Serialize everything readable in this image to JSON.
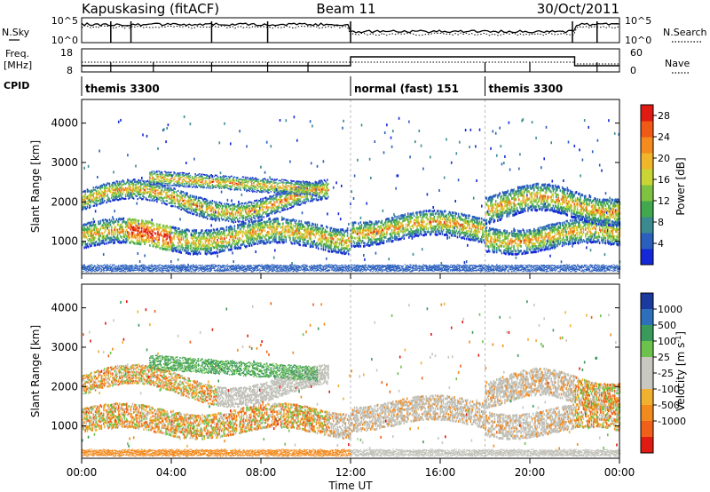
{
  "header": {
    "station": "Kapuskasing (fitACF)",
    "beam": "Beam 11",
    "date": "30/Oct/2011"
  },
  "noise_panel": {
    "left_label": "N.Sky",
    "right_label": "N.Search",
    "left_ticks": [
      "10^5",
      "10^0"
    ],
    "right_ticks": [
      "10^5",
      "10^0"
    ]
  },
  "freq_panel": {
    "left_label_line1": "Freq.",
    "left_label_line2": "[MHz]",
    "right_label": "Nave",
    "left_ticks": [
      "18",
      "8"
    ],
    "right_ticks": [
      "60",
      "0"
    ]
  },
  "cpid": {
    "label": "CPID",
    "segments": [
      {
        "start_hour": 0,
        "end_hour": 12,
        "name": "themis 3300"
      },
      {
        "start_hour": 12,
        "end_hour": 18,
        "name": "normal (fast) 151"
      },
      {
        "start_hour": 18,
        "end_hour": 24,
        "name": "themis 3300"
      }
    ]
  },
  "time_axis": {
    "label": "Time UT",
    "ticks": [
      "00:00",
      "04:00",
      "08:00",
      "12:00",
      "16:00",
      "20:00",
      "00:00"
    ]
  },
  "chart_data": [
    {
      "type": "heatmap",
      "title": "",
      "xlabel": "Time UT",
      "ylabel": "Slant Range [km]",
      "xlim_hours": [
        0,
        24
      ],
      "ylim": [
        180,
        4600
      ],
      "yticks": [
        "1000",
        "2000",
        "3000",
        "4000"
      ],
      "colorbar": {
        "label": "Power [dB]",
        "ticks": [
          "4",
          "8",
          "12",
          "16",
          "20",
          "24",
          "28"
        ],
        "range": [
          0,
          30
        ],
        "colors": [
          "#1428d8",
          "#2a5fbd",
          "#3a8a8f",
          "#41a84e",
          "#7fc241",
          "#c9d435",
          "#f0b52b",
          "#f58a1e",
          "#f05a16",
          "#e01b12"
        ]
      }
    },
    {
      "type": "heatmap",
      "title": "",
      "xlabel": "Time UT",
      "ylabel": "Slant Range [km]",
      "xlim_hours": [
        0,
        24
      ],
      "ylim": [
        180,
        4600
      ],
      "yticks": [
        "1000",
        "2000",
        "3000",
        "4000"
      ],
      "colorbar": {
        "label": "Velocity [m s^-1]",
        "ticks": [
          "1000",
          "500",
          "100",
          "25",
          "-25",
          "-100",
          "-500",
          "-1000"
        ],
        "colors": [
          "#1a3a9e",
          "#2d6fba",
          "#3a9a5c",
          "#6cc24a",
          "#c8c8c0",
          "#c8c8c0",
          "#f0b030",
          "#f28a1e",
          "#f0601a",
          "#e01b12"
        ]
      },
      "ground_scatter_color": "#c0c0b8"
    }
  ]
}
